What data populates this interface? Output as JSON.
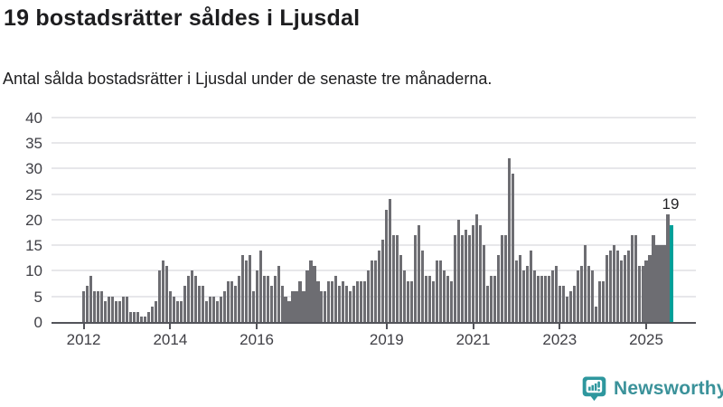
{
  "header": {
    "title": "19 bostadsrätter såldes i Ljusdal",
    "subtitle": "Antal sålda bostadsrätter i Ljusdal under de senaste tre månaderna."
  },
  "chart_data": {
    "type": "bar",
    "title": "19 bostadsrätter såldes i Ljusdal",
    "subtitle": "Antal sålda bostadsrätter i Ljusdal under de senaste tre månaderna.",
    "frequency": "monthly",
    "x_start": "2012-01",
    "x_end": "2025-08",
    "values": [
      6,
      7,
      9,
      6,
      6,
      6,
      4,
      5,
      5,
      4,
      4,
      5,
      5,
      2,
      2,
      2,
      1,
      1,
      2,
      3,
      4,
      10,
      12,
      11,
      6,
      5,
      4,
      4,
      7,
      9,
      10,
      9,
      7,
      7,
      4,
      5,
      5,
      4,
      5,
      6,
      8,
      8,
      7,
      9,
      13,
      12,
      13,
      6,
      10,
      14,
      9,
      9,
      7,
      9,
      11,
      7,
      5,
      4,
      6,
      6,
      8,
      6,
      10,
      12,
      11,
      8,
      6,
      6,
      8,
      8,
      9,
      7,
      8,
      7,
      6,
      7,
      8,
      8,
      8,
      10,
      12,
      12,
      14,
      16,
      22,
      24,
      17,
      17,
      13,
      10,
      8,
      8,
      17,
      19,
      14,
      9,
      9,
      8,
      12,
      12,
      10,
      9,
      8,
      17,
      20,
      17,
      18,
      17,
      19,
      21,
      19,
      15,
      7,
      9,
      9,
      13,
      17,
      17,
      32,
      29,
      12,
      13,
      10,
      11,
      14,
      10,
      9,
      9,
      9,
      9,
      10,
      11,
      7,
      7,
      5,
      6,
      7,
      10,
      11,
      15,
      11,
      10,
      3,
      8,
      8,
      13,
      14,
      15,
      14,
      12,
      13,
      14,
      17,
      17,
      11,
      11,
      12,
      13,
      17,
      15,
      15,
      15,
      21,
      19
    ],
    "highlight_label": "19",
    "highlight_value": 19,
    "bar_color": "#6d6d72",
    "highlight_color": "#00a099",
    "y_axis": {
      "ticks": [
        0,
        5,
        10,
        15,
        20,
        25,
        30,
        35,
        40
      ],
      "lim": [
        0,
        40
      ]
    },
    "x_axis": {
      "tick_years": [
        2012,
        2014,
        2016,
        2019,
        2021,
        2023,
        2025
      ]
    },
    "grid": true,
    "legend": false
  },
  "footer": {
    "logo_text": "Newsworthy",
    "logo_icon": "newsworthy-bar-chart-bubble-icon",
    "logo_icon_color": "#2e979e",
    "logo_text_color": "#3b929a"
  }
}
